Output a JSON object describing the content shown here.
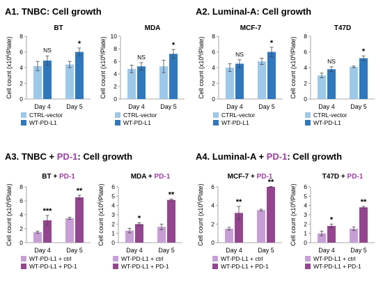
{
  "colors": {
    "ctrl_vector": "#9ec8ea",
    "wt_pdl1": "#2f78bd",
    "wt_ctrl": "#c79ed5",
    "wt_pd1": "#93468f",
    "pd1_text": "#9a3fa0",
    "axis": "#8c8c8c",
    "text": "#000000"
  },
  "panels": [
    {
      "prefix": "A1. TNBC",
      "highlight": "",
      "suffix": ": Cell growth"
    },
    {
      "prefix": "A2. Luminal-A",
      "highlight": "",
      "suffix": ": Cell growth"
    },
    {
      "prefix": "A3. TNBC + ",
      "highlight": "PD-1",
      "suffix": ": Cell growth"
    },
    {
      "prefix": "A4. Luminal-A + ",
      "highlight": "PD-1",
      "suffix": ": Cell growth"
    }
  ],
  "y_label_prefix": "Cell count (x10",
  "y_label_sup": "6",
  "y_label_suffix": "/Plate)",
  "chart_data": [
    {
      "type": "bar",
      "title": "BT",
      "title_highlight": "",
      "categories": [
        "Day 4",
        "Day 5"
      ],
      "ylim": [
        0,
        8
      ],
      "yticks": [
        0,
        2,
        4,
        6,
        8
      ],
      "series": [
        {
          "name": "CTRL-vector",
          "values": [
            4.2,
            4.4
          ],
          "errors": [
            0.6,
            0.4
          ],
          "color": "#9ec8ea"
        },
        {
          "name": "WT-PD-L1",
          "values": [
            4.9,
            6.0
          ],
          "errors": [
            0.6,
            0.5
          ],
          "color": "#2f78bd"
        }
      ],
      "annotations": [
        "NS",
        "*"
      ]
    },
    {
      "type": "bar",
      "title": "MDA",
      "title_highlight": "",
      "categories": [
        "Day 4",
        "Day 5"
      ],
      "ylim": [
        0,
        10
      ],
      "yticks": [
        0,
        2,
        4,
        6,
        8,
        10
      ],
      "series": [
        {
          "name": "CTRL-vector",
          "values": [
            4.8,
            5.2
          ],
          "errors": [
            0.6,
            1.0
          ],
          "color": "#9ec8ea"
        },
        {
          "name": "WT-PD-L1",
          "values": [
            5.2,
            7.2
          ],
          "errors": [
            0.6,
            0.7
          ],
          "color": "#2f78bd"
        }
      ],
      "annotations": [
        "NS",
        "*"
      ]
    },
    {
      "type": "bar",
      "title": "MCF-7",
      "title_highlight": "",
      "categories": [
        "Day 4",
        "Day 5"
      ],
      "ylim": [
        0,
        8
      ],
      "yticks": [
        0,
        2,
        4,
        6,
        8
      ],
      "series": [
        {
          "name": "CTRL-vector",
          "values": [
            4.0,
            4.8
          ],
          "errors": [
            0.5,
            0.4
          ],
          "color": "#9ec8ea"
        },
        {
          "name": "WT-PD-L1",
          "values": [
            4.5,
            6.0
          ],
          "errors": [
            0.5,
            0.6
          ],
          "color": "#2f78bd"
        }
      ],
      "annotations": [
        "NS",
        "*"
      ]
    },
    {
      "type": "bar",
      "title": "T47D",
      "title_highlight": "",
      "categories": [
        "Day 4",
        "Day 5"
      ],
      "ylim": [
        0,
        8
      ],
      "yticks": [
        0,
        2,
        4,
        6,
        8
      ],
      "series": [
        {
          "name": "CTRL-vector",
          "values": [
            3.0,
            4.1
          ],
          "errors": [
            0.3,
            0.1
          ],
          "color": "#9ec8ea"
        },
        {
          "name": "WT-PD-L1",
          "values": [
            3.8,
            5.2
          ],
          "errors": [
            0.3,
            0.3
          ],
          "color": "#2f78bd"
        }
      ],
      "annotations": [
        "NS",
        "*"
      ]
    },
    {
      "type": "bar",
      "title": "BT + ",
      "title_highlight": "PD-1",
      "categories": [
        "Day 4",
        "Day 5"
      ],
      "ylim": [
        0,
        8
      ],
      "yticks": [
        0,
        2,
        4,
        6,
        8
      ],
      "series": [
        {
          "name": "WT-PD-L1 + ctrl",
          "values": [
            1.5,
            3.5
          ],
          "errors": [
            0.15,
            0.15
          ],
          "color": "#c79ed5"
        },
        {
          "name": "WT-PD-L1 + PD-1",
          "values": [
            3.2,
            6.5
          ],
          "errors": [
            0.7,
            0.3
          ],
          "color": "#93468f"
        }
      ],
      "annotations": [
        "***",
        "**"
      ]
    },
    {
      "type": "bar",
      "title": "MDA + ",
      "title_highlight": "PD-1",
      "categories": [
        "Day 4",
        "Day 5"
      ],
      "ylim": [
        0,
        6
      ],
      "yticks": [
        0,
        1,
        2,
        3,
        4,
        5,
        6
      ],
      "series": [
        {
          "name": "WT-PD-L1 + ctrl",
          "values": [
            1.3,
            1.7
          ],
          "errors": [
            0.25,
            0.3
          ],
          "color": "#c79ed5"
        },
        {
          "name": "WT-PD-L1 + PD-1",
          "values": [
            2.0,
            4.6
          ],
          "errors": [
            0.15,
            0.1
          ],
          "color": "#93468f"
        }
      ],
      "annotations": [
        "*",
        "**"
      ]
    },
    {
      "type": "bar",
      "title": "MCF-7 + ",
      "title_highlight": "PD-1",
      "categories": [
        "Day 4",
        "Day 5"
      ],
      "ylim": [
        0,
        6
      ],
      "yticks": [
        0,
        2,
        4,
        6
      ],
      "series": [
        {
          "name": "WT-PD-L1 + ctrl",
          "values": [
            1.5,
            3.5
          ],
          "errors": [
            0.15,
            0.1
          ],
          "color": "#c79ed5"
        },
        {
          "name": "WT-PD-L1 + PD-1",
          "values": [
            3.2,
            6.0
          ],
          "errors": [
            0.7,
            0.05
          ],
          "color": "#93468f"
        }
      ],
      "annotations": [
        "**",
        "**"
      ]
    },
    {
      "type": "bar",
      "title": "T47D + ",
      "title_highlight": "PD-1",
      "categories": [
        "Day 4",
        "Day 5"
      ],
      "ylim": [
        0,
        6
      ],
      "yticks": [
        0,
        1,
        2,
        3,
        4,
        5,
        6
      ],
      "series": [
        {
          "name": "WT-PD-L1 + ctrl",
          "values": [
            1.0,
            1.5
          ],
          "errors": [
            0.25,
            0.2
          ],
          "color": "#c79ed5"
        },
        {
          "name": "WT-PD-L1 + PD-1",
          "values": [
            1.8,
            3.8
          ],
          "errors": [
            0.2,
            0.1
          ],
          "color": "#93468f"
        }
      ],
      "annotations": [
        "*",
        "**"
      ]
    }
  ]
}
